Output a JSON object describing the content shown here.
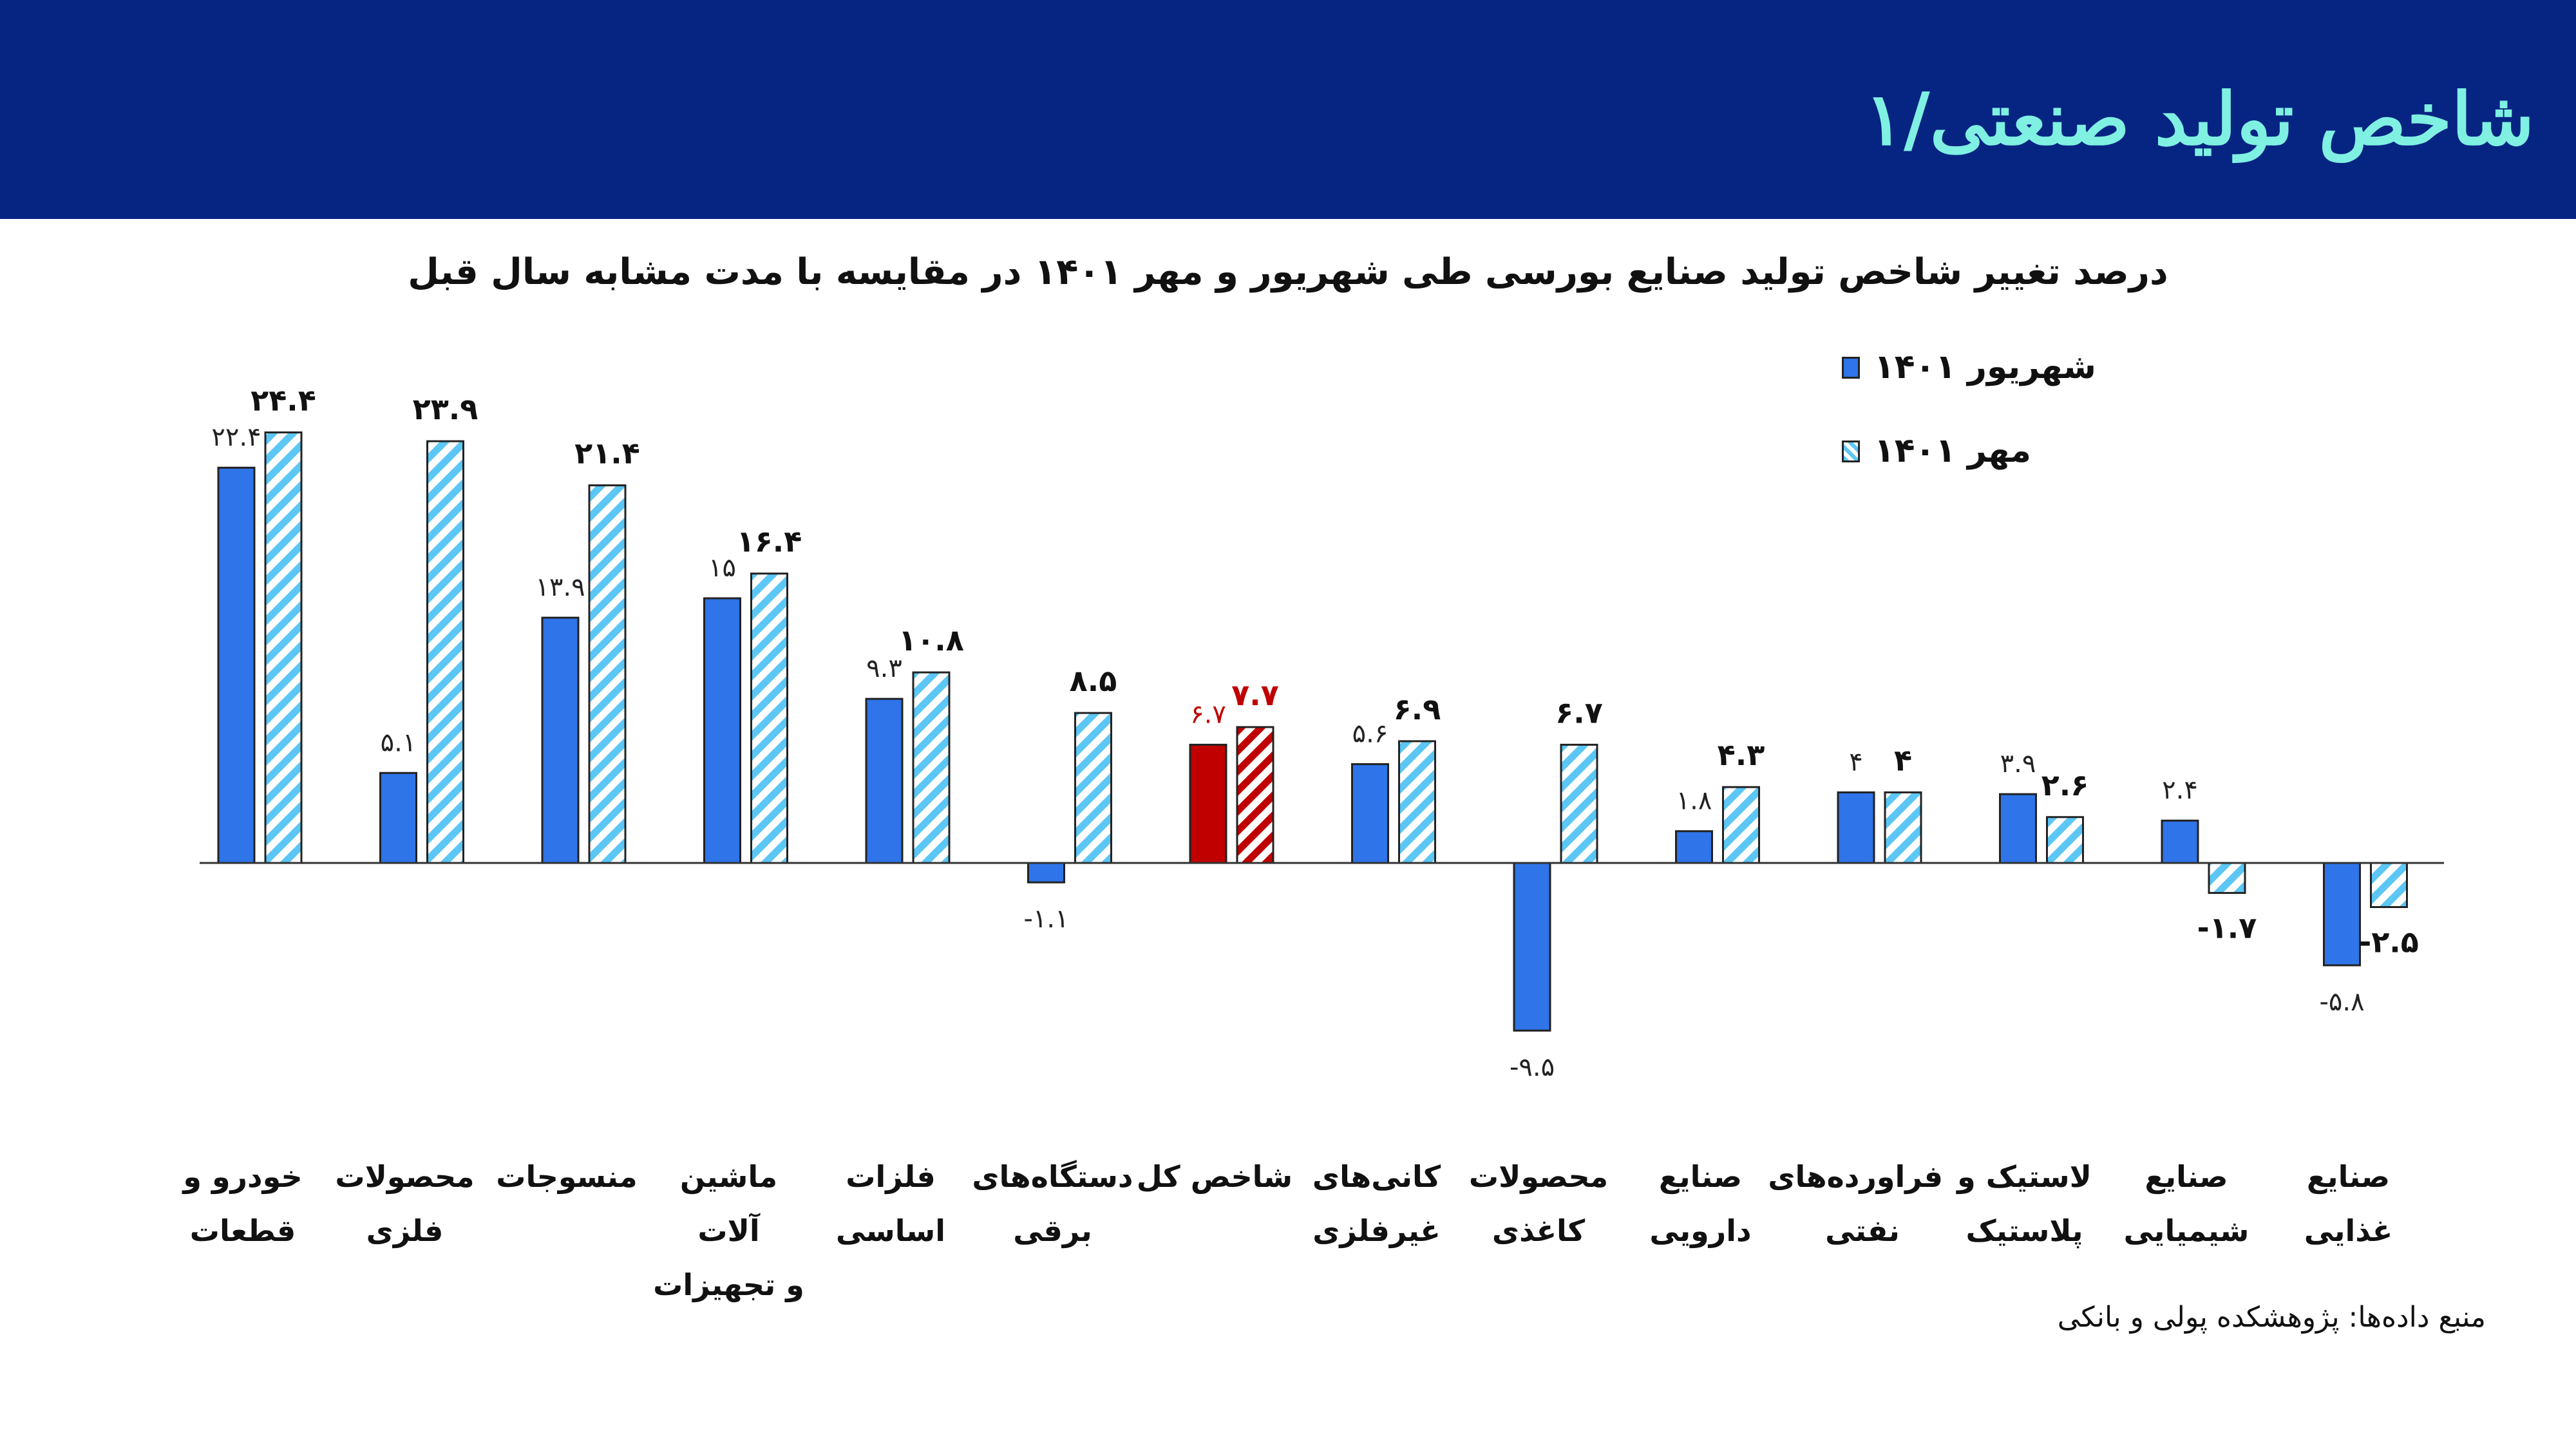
{
  "header": {
    "title": "شاخص تولید صنعتی/۱"
  },
  "source": "منبع داده‌ها: پژوهشکده پولی و بانکی",
  "colors": {
    "header_bg": "#062482",
    "header_text": "#7ff0e2",
    "series1": "#2f74e8",
    "series2_hatch": "#5cc6f5",
    "highlight": "#c00000"
  },
  "chart_data": {
    "type": "bar",
    "title": "درصد تغییر شاخص تولید صنایع بورسی طی شهریور و مهر ۱۴۰۱ در مقایسه با مدت مشابه سال قبل",
    "xlabel": "",
    "ylabel": "",
    "ylim": [
      -12,
      27
    ],
    "grid": false,
    "legend_position": "top-right",
    "categories": [
      "خودرو و\nقطعات",
      "محصولات\nفلزی",
      "منسوجات",
      "ماشین آلات\nو تجهیزات",
      "فلزات\nاساسی",
      "دستگاه‌های\nبرقی",
      "شاخص کل",
      "کانی‌های\nغیرفلزی",
      "محصولات\nکاغذی",
      "صنایع\nدارویی",
      "فراورده‌های\nنفتی",
      "لاستیک و\nپلاستیک",
      "صنایع\nشیمیایی",
      "صنایع\nغذایی"
    ],
    "highlight_category_index": 6,
    "series": [
      {
        "name": "شهریور ۱۴۰۱",
        "style": "solid",
        "values": [
          22.4,
          5.1,
          13.9,
          15,
          9.3,
          -1.1,
          6.7,
          5.6,
          -9.5,
          1.8,
          4,
          3.9,
          2.4,
          -5.8
        ],
        "labels": [
          "۲۲.۴",
          "۵.۱",
          "۱۳.۹",
          "۱۵",
          "۹.۳",
          "-۱.۱",
          "۶.۷",
          "۵.۶",
          "-۹.۵",
          "۱.۸",
          "۴",
          "۳.۹",
          "۲.۴",
          "-۵.۸"
        ]
      },
      {
        "name": "مهر ۱۴۰۱",
        "style": "hatched",
        "values": [
          24.4,
          23.9,
          21.4,
          16.4,
          10.8,
          8.5,
          7.7,
          6.9,
          6.7,
          4.3,
          4,
          2.6,
          -1.7,
          -2.5
        ],
        "labels": [
          "۲۴.۴",
          "۲۳.۹",
          "۲۱.۴",
          "۱۶.۴",
          "۱۰.۸",
          "۸.۵",
          "۷.۷",
          "۶.۹",
          "۶.۷",
          "۴.۳",
          "۴",
          "۲.۶",
          "-۱.۷",
          "-۲.۵"
        ]
      }
    ]
  }
}
